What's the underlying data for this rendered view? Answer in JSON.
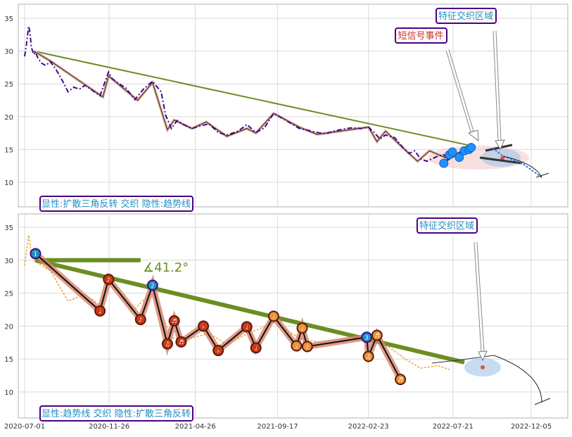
{
  "chart_data": [
    {
      "type": "line",
      "panel": "top",
      "ylim": [
        7,
        37
      ],
      "yticks": [
        "10",
        "15",
        "20",
        "25",
        "30",
        "35"
      ],
      "grid": true,
      "series": [
        {
          "role": "price-dashdot",
          "color": "#3d0a8a",
          "x": [
            "2020-07-01",
            "2020-07-05",
            "2020-07-08",
            "2020-07-10",
            "2020-07-13",
            "2020-07-17",
            "2020-07-20",
            "2020-07-24",
            "2020-07-30",
            "2020-08-07",
            "2020-08-15",
            "2020-08-25",
            "2020-09-05",
            "2020-09-15",
            "2020-09-25",
            "2020-10-05",
            "2020-10-15",
            "2020-10-28",
            "2020-11-10",
            "2020-11-25",
            "2020-12-01",
            "2020-12-10",
            "2020-12-25",
            "2021-01-10",
            "2021-01-25",
            "2021-02-10",
            "2021-02-25",
            "2021-03-05",
            "2021-03-15",
            "2021-03-25",
            "2021-04-05",
            "2021-04-20",
            "2021-05-05",
            "2021-05-20",
            "2021-06-05",
            "2021-06-20",
            "2021-07-10",
            "2021-07-25",
            "2021-08-10",
            "2021-08-25",
            "2021-09-10",
            "2021-09-25",
            "2021-10-10",
            "2021-10-25",
            "2021-11-10",
            "2021-11-25",
            "2021-12-10",
            "2021-12-25",
            "2022-01-10",
            "2022-01-25",
            "2022-02-10",
            "2022-02-23",
            "2022-03-05",
            "2022-03-15",
            "2022-03-25",
            "2022-04-10",
            "2022-04-25",
            "2022-05-05",
            "2022-05-15",
            "2022-05-25",
            "2022-06-05",
            "2022-06-15",
            "2022-06-25",
            "2022-07-05",
            "2022-07-15"
          ],
          "y": [
            29.2,
            31.5,
            33.8,
            33,
            30.5,
            29.5,
            29.8,
            29,
            28.2,
            27.8,
            28.4,
            27.2,
            25.5,
            23.8,
            24.5,
            24.2,
            24.8,
            24,
            23.2,
            26.8,
            25.8,
            25.2,
            24.4,
            22.6,
            24.2,
            25.4,
            23.8,
            20.2,
            18.2,
            19.4,
            18.8,
            18.2,
            18.6,
            18.9,
            17.6,
            17.2,
            17.8,
            18.8,
            17.6,
            18.3,
            20.5,
            19.8,
            19.0,
            18.2,
            17.9,
            17.6,
            17.4,
            17.8,
            18.1,
            18.3,
            18.2,
            18.4,
            17.6,
            16.6,
            17.2,
            16.8,
            15.2,
            14.4,
            14.8,
            13.6,
            13.2,
            13.6,
            14.0,
            14.2,
            13.4
          ]
        },
        {
          "role": "price-smooth",
          "color": "#e8b7a8",
          "x": [
            "2020-07-17",
            "2020-08-15",
            "2020-11-15",
            "2020-11-25",
            "2021-01-15",
            "2021-02-10",
            "2021-03-08",
            "2021-03-20",
            "2021-04-20",
            "2021-05-15",
            "2021-06-20",
            "2021-07-25",
            "2021-08-10",
            "2021-09-10",
            "2021-10-25",
            "2021-11-25",
            "2022-02-23",
            "2022-03-10",
            "2022-03-25",
            "2022-04-25",
            "2022-05-20",
            "2022-06-10",
            "2022-07-15"
          ],
          "y": [
            30,
            28.5,
            23,
            26.2,
            22.5,
            25.2,
            18,
            19.5,
            18.2,
            19.2,
            17,
            18.2,
            17.5,
            20.5,
            18.4,
            17.3,
            18.4,
            16.2,
            17.8,
            15.2,
            13.2,
            14.8,
            13.5
          ]
        }
      ],
      "trendline": {
        "x": [
          "2020-07-17",
          "2022-08-25"
        ],
        "y": [
          30,
          15.5
        ],
        "color": "#6b8e23"
      },
      "feature_dots": {
        "x": [
          "2022-07-05",
          "2022-07-15",
          "2022-07-20",
          "2022-08-01",
          "2022-08-10",
          "2022-08-18",
          "2022-08-22"
        ],
        "y": [
          12.9,
          14.2,
          14.6,
          13.8,
          14.8,
          15.0,
          15.3
        ],
        "color": "#1e90ff"
      },
      "annotations": [
        {
          "text": "短信号事件",
          "color": "#c0392b",
          "border": "#4b0082"
        },
        {
          "text": "特征交织区域",
          "color": "#1f8fbf",
          "border": "#4b0082"
        },
        {
          "text": "显性:扩散三角反转 交织 隐性:趋势线",
          "color": "#1f8fbf",
          "border": "#4b0082"
        }
      ]
    },
    {
      "type": "line",
      "panel": "bottom",
      "ylim": [
        7,
        37
      ],
      "yticks": [
        "10",
        "15",
        "20",
        "25",
        "30",
        "35"
      ],
      "xticks": [
        "2020-07-01",
        "2020-11-26",
        "2021-04-26",
        "2021-09-17",
        "2022-02-23",
        "2022-07-21",
        "2022-12-05"
      ],
      "grid": true,
      "series": [
        {
          "role": "price-faint",
          "color": "#e8a53a",
          "x": [
            "2020-07-01",
            "2020-07-08",
            "2020-07-10",
            "2020-07-13",
            "2020-07-20",
            "2020-08-15",
            "2020-09-15",
            "2020-10-15",
            "2020-11-10",
            "2020-11-25",
            "2021-01-10",
            "2021-02-10",
            "2021-03-15",
            "2021-04-20",
            "2021-05-20",
            "2021-06-20",
            "2021-07-25",
            "2021-09-10",
            "2021-10-25",
            "2021-11-25",
            "2022-01-10",
            "2022-02-23",
            "2022-03-25",
            "2022-04-25",
            "2022-05-25",
            "2022-06-25",
            "2022-07-15"
          ],
          "y": [
            29.2,
            33.8,
            33,
            30.5,
            29.8,
            28.4,
            23.8,
            24.8,
            23.2,
            26.8,
            22.6,
            25.4,
            18.2,
            18.2,
            18.9,
            17.2,
            18.8,
            20.5,
            18.2,
            17.6,
            18.1,
            18.4,
            17.2,
            15.2,
            13.6,
            14.0,
            13.4
          ]
        },
        {
          "role": "zigzag",
          "x": [
            "2020-07-20",
            "2020-11-10",
            "2020-11-25",
            "2021-01-20",
            "2021-02-10",
            "2021-03-08",
            "2021-03-20",
            "2021-04-01",
            "2021-05-10",
            "2021-06-05",
            "2021-07-25",
            "2021-08-10",
            "2021-09-10",
            "2021-10-20",
            "2021-10-30",
            "2021-11-08",
            "2022-02-20",
            "2022-02-23",
            "2022-03-10",
            "2022-04-20"
          ],
          "y": [
            31,
            22.3,
            27.1,
            21.0,
            26.2,
            17.3,
            20.8,
            17.6,
            20.0,
            16.3,
            19.9,
            16.7,
            21.5,
            17.0,
            19.7,
            16.9,
            18.3,
            15.4,
            18.6,
            11.9
          ]
        }
      ],
      "zigzag_labels": [
        {
          "x": "2020-07-20",
          "y": 31.0,
          "glyph": "1",
          "color": "#1f8fbf"
        },
        {
          "x": "2020-11-10",
          "y": 22.3,
          "glyph": "♩",
          "color": "#cc3a1a"
        },
        {
          "x": "2020-11-25",
          "y": 27.1,
          "glyph": "♪",
          "color": "#cc3a1a"
        },
        {
          "x": "2021-01-20",
          "y": 21.0,
          "glyph": "♪",
          "color": "#cc3a1a"
        },
        {
          "x": "2021-02-10",
          "y": 26.2,
          "glyph": "2",
          "color": "#1f8fbf"
        },
        {
          "x": "2021-03-08",
          "y": 17.3,
          "glyph": "♫",
          "color": "#cc3a1a"
        },
        {
          "x": "2021-03-20",
          "y": 20.8,
          "glyph": "♬",
          "color": "#cc3a1a"
        },
        {
          "x": "2021-04-01",
          "y": 17.6,
          "glyph": "♬",
          "color": "#cc3a1a"
        },
        {
          "x": "2021-05-10",
          "y": 20.0,
          "glyph": "♭",
          "color": "#cc3a1a"
        },
        {
          "x": "2021-06-05",
          "y": 16.3,
          "glyph": "♭",
          "color": "#cc3a1a"
        },
        {
          "x": "2021-07-25",
          "y": 19.9,
          "glyph": "♩",
          "color": "#cc3a1a"
        },
        {
          "x": "2021-08-10",
          "y": 16.7,
          "glyph": "♩",
          "color": "#cc3a1a"
        },
        {
          "x": "2021-09-10",
          "y": 21.5,
          "glyph": "♩",
          "color": "#e8943a"
        },
        {
          "x": "2021-10-20",
          "y": 17.0,
          "glyph": "♩",
          "color": "#e8943a"
        },
        {
          "x": "2021-10-30",
          "y": 19.7,
          "glyph": "♩",
          "color": "#e8943a"
        },
        {
          "x": "2021-11-08",
          "y": 16.9,
          "glyph": "♪",
          "color": "#e8943a"
        },
        {
          "x": "2022-02-20",
          "y": 18.3,
          "glyph": "3",
          "color": "#1f8fbf"
        },
        {
          "x": "2022-02-23",
          "y": 15.4,
          "glyph": "♫",
          "color": "#e8943a"
        },
        {
          "x": "2022-03-10",
          "y": 18.6,
          "glyph": "♬",
          "color": "#e8943a"
        },
        {
          "x": "2022-04-20",
          "y": 11.9,
          "glyph": "♬",
          "color": "#e8943a"
        }
      ],
      "trendline": {
        "x": [
          "2020-07-20",
          "2022-08-10"
        ],
        "y": [
          30,
          14.5
        ],
        "color": "#6b8e23"
      },
      "horizontal": {
        "x": [
          "2020-07-20",
          "2021-01-20"
        ],
        "y": [
          30,
          30
        ],
        "color": "#6b8e23"
      },
      "angle_label": "∡41.2°",
      "annotations": [
        {
          "text": "特征交织区域",
          "color": "#1f8fbf",
          "border": "#4b0082"
        },
        {
          "text": "显性:趋势线 交织 隐性:扩散三角反转",
          "color": "#1f8fbf",
          "border": "#4b0082"
        }
      ]
    }
  ]
}
